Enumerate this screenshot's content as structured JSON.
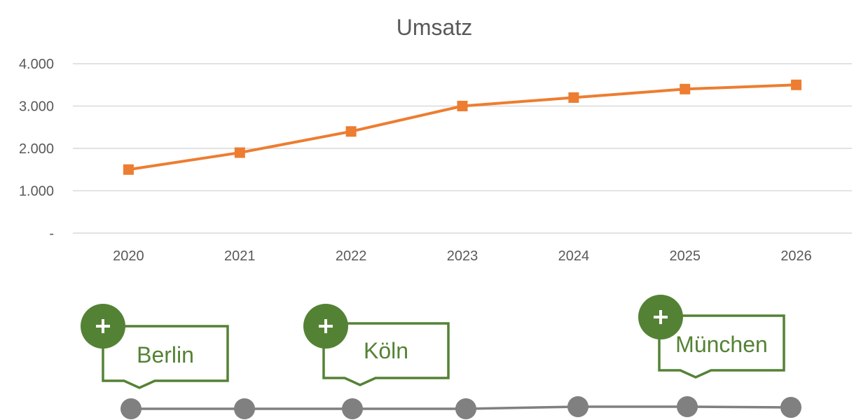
{
  "chart_data": {
    "type": "line",
    "title": "Umsatz",
    "xlabel": "",
    "ylabel": "",
    "categories": [
      "2020",
      "2021",
      "2022",
      "2023",
      "2024",
      "2025",
      "2026"
    ],
    "series": [
      {
        "values": [
          1500,
          1900,
          2400,
          3000,
          3200,
          3400,
          3500
        ],
        "color": "#ed7d31",
        "marker": "square"
      }
    ],
    "ylim": [
      0,
      4000
    ],
    "yticks": [
      0,
      1000,
      2000,
      3000,
      4000
    ],
    "ytick_labels": [
      "-",
      "1.000",
      "2.000",
      "3.000",
      "4.000"
    ],
    "grid": "horizontal",
    "legend": "none"
  },
  "timeline": {
    "line_color": "#808080",
    "dot_color": "#808080",
    "callout_color": "#548235",
    "milestones": [
      {
        "label": "Berlin",
        "dot_index": 0
      },
      {
        "label": "Köln",
        "dot_index": 2
      },
      {
        "label": "München",
        "dot_index": 5
      }
    ]
  }
}
